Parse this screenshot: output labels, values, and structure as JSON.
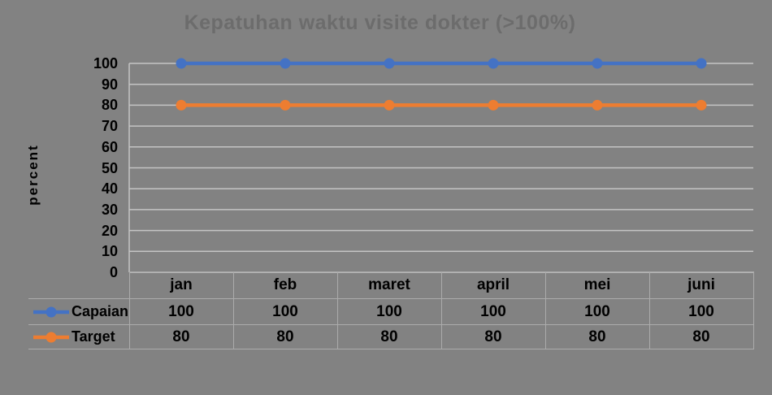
{
  "chart_data": {
    "type": "line",
    "title": "Kepatuhan waktu visite dokter (>100%)",
    "xlabel": "",
    "ylabel": "percent",
    "categories": [
      "jan",
      "feb",
      "maret",
      "april",
      "mei",
      "juni"
    ],
    "series": [
      {
        "name": "Capaian",
        "values": [
          100,
          100,
          100,
          100,
          100,
          100
        ],
        "color": "#4472C4"
      },
      {
        "name": "Target",
        "values": [
          80,
          80,
          80,
          80,
          80,
          80
        ],
        "color": "#ED7D31"
      }
    ],
    "ylim": [
      0,
      100
    ],
    "yticks": [
      0,
      10,
      20,
      30,
      40,
      50,
      60,
      70,
      80,
      90,
      100
    ],
    "grid": "horizontal gridlines on",
    "legend_position": "table-left",
    "marker": "circle",
    "data_table_shown": true
  },
  "colors": {
    "background": "#828282",
    "title_text": "#6C6C6C",
    "axis_text": "#000000",
    "gridline": "#C4C4C4",
    "table_border": "#ABABAB",
    "series_capaian": "#4472C4",
    "series_target": "#ED7D31"
  }
}
